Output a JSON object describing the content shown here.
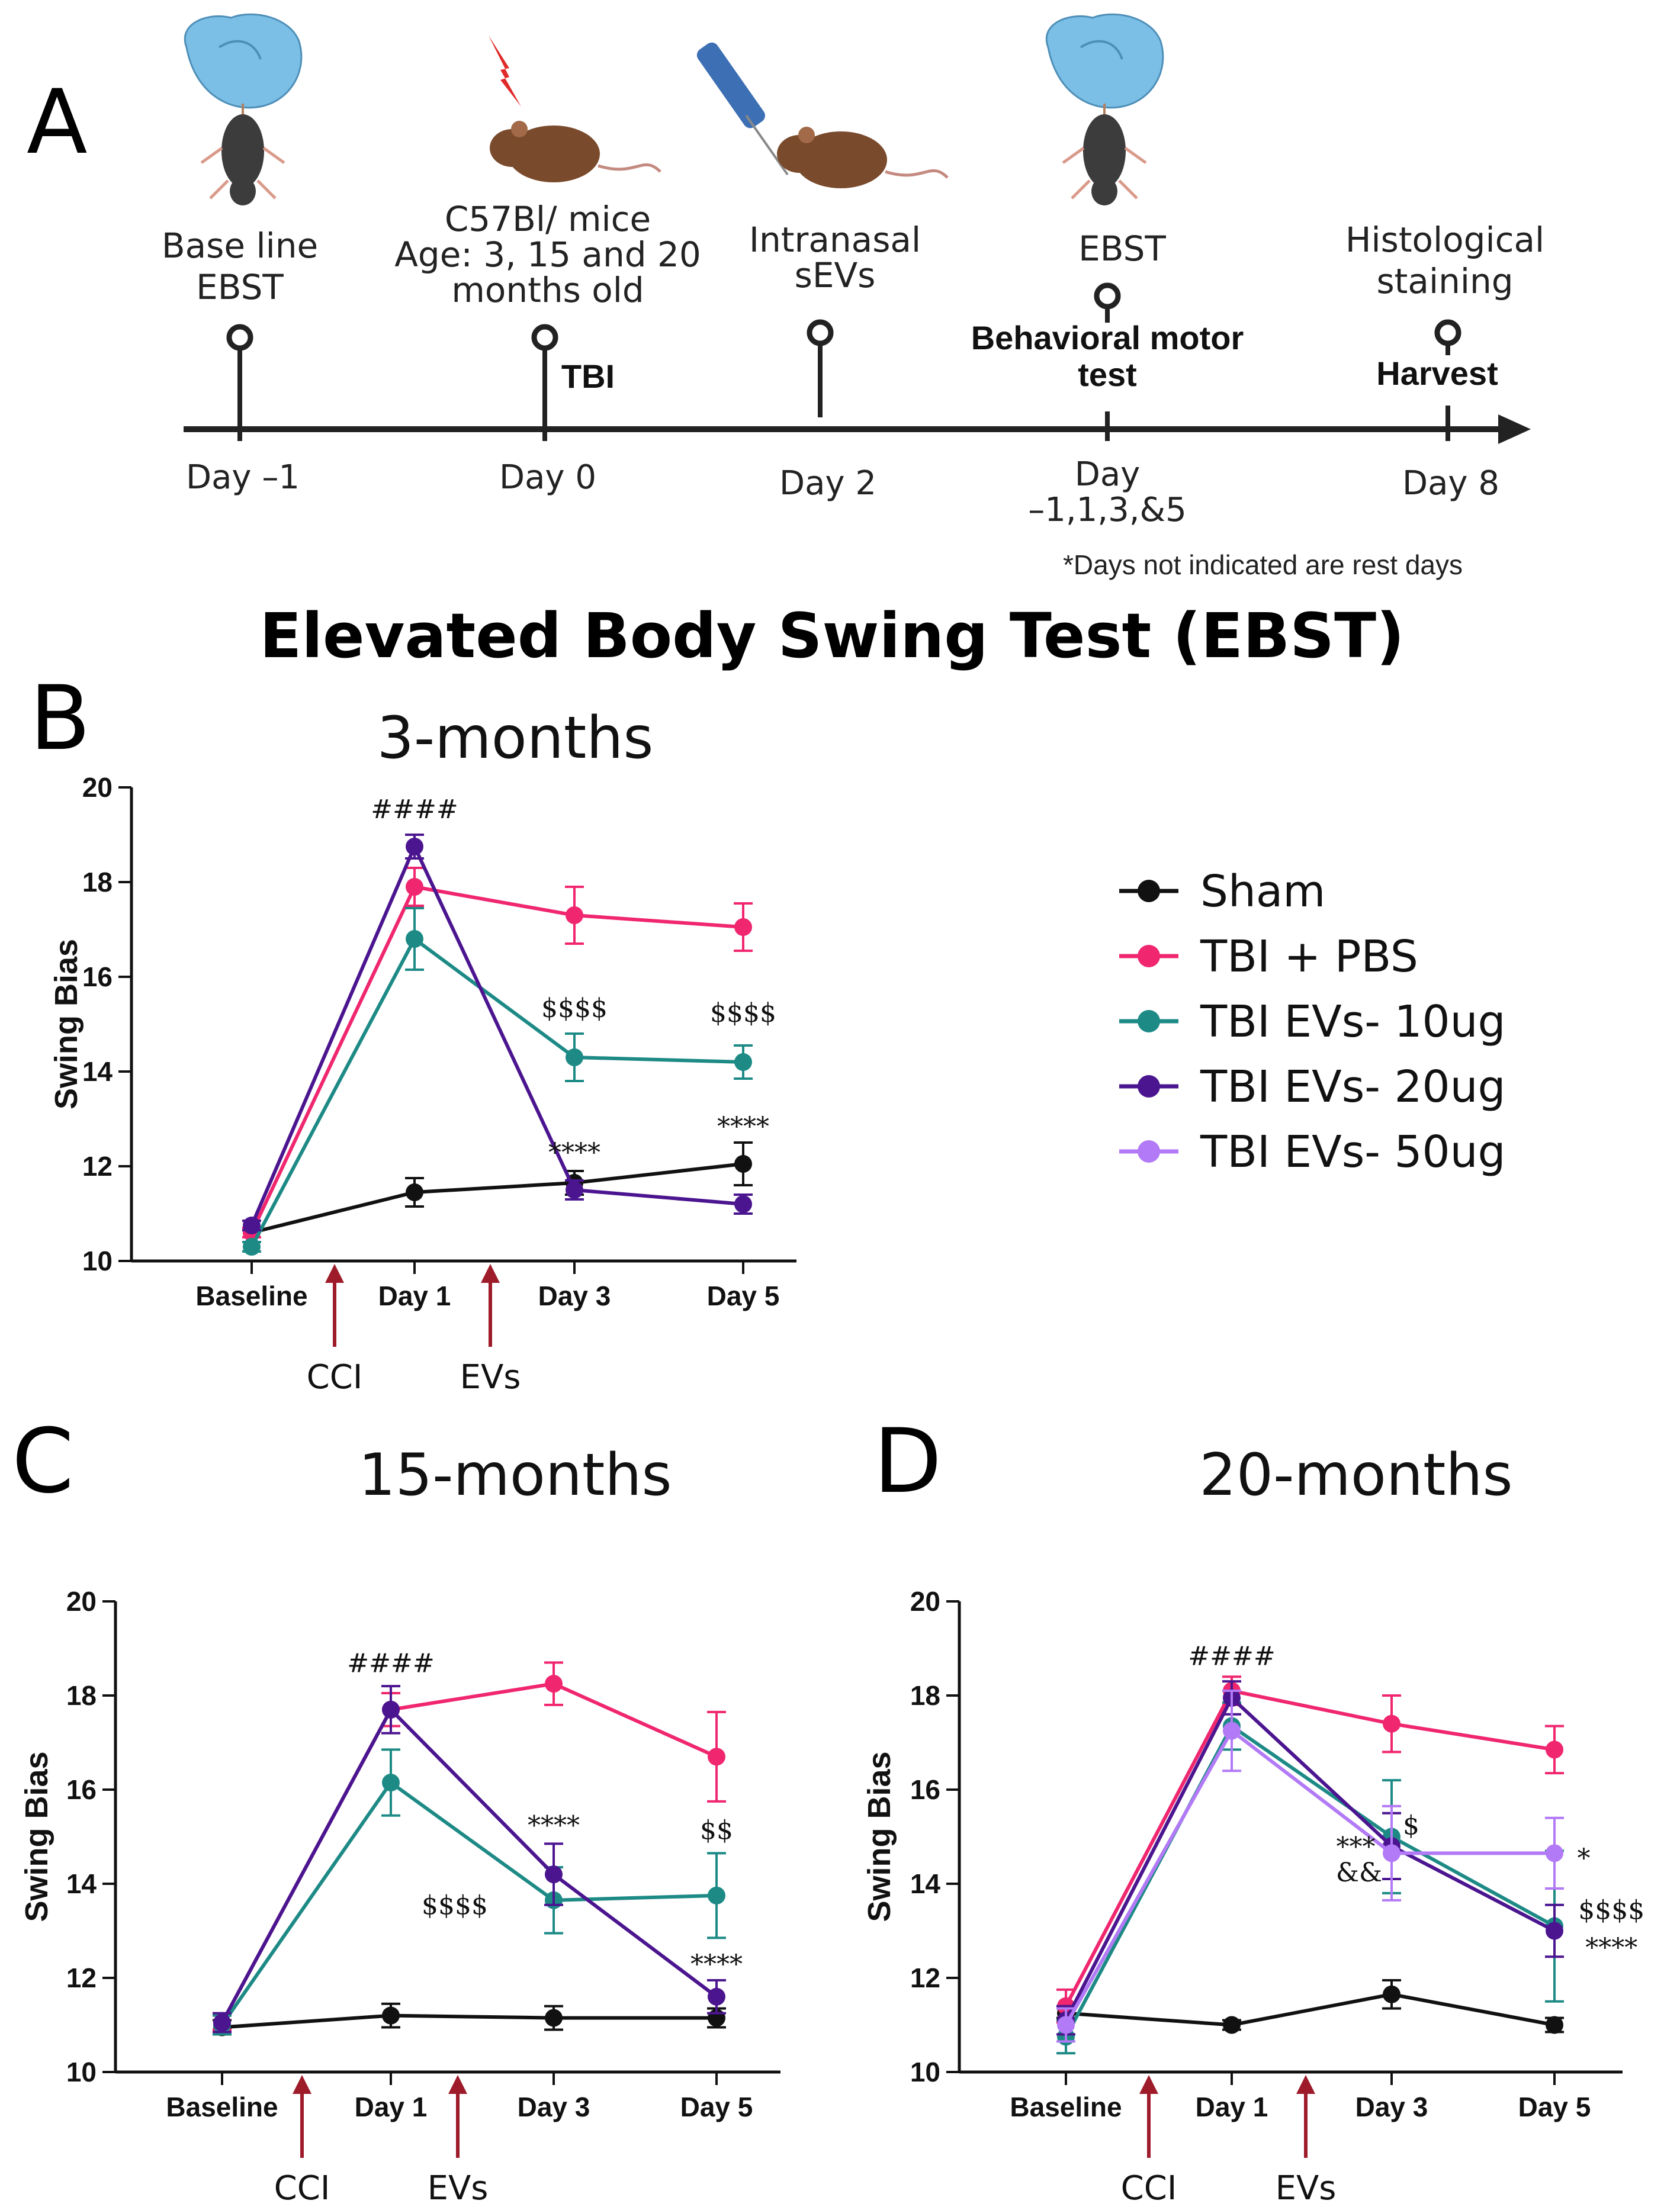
{
  "colors": {
    "sham": "#111111",
    "pbs": "#f0266f",
    "ev10": "#1d8a86",
    "ev20": "#4b1590",
    "ev50": "#b27af6",
    "arrow": "#9e1b2a",
    "glove": "#7cbfe6",
    "mouse_dark": "#3c3c3c",
    "mouse_brown": "#7a4a2c",
    "bolt": "#e02a2a"
  },
  "panel_a": {
    "letter": "A",
    "events": [
      {
        "id": "baseline",
        "top_lines": [
          "Base line",
          "EBST"
        ],
        "label": "",
        "day": [
          "Day –1"
        ]
      },
      {
        "id": "tbi",
        "top_lines": [
          "C57Bl/ mice",
          "Age: 3, 15 and 20",
          "months old"
        ],
        "label": "TBI",
        "day": [
          "Day 0"
        ]
      },
      {
        "id": "evs",
        "top_lines": [
          "Intranasal",
          "sEVs"
        ],
        "label": "",
        "day": [
          "Day 2"
        ]
      },
      {
        "id": "ebst",
        "top_lines": [
          "EBST"
        ],
        "label_lines": [
          "Behavioral motor",
          "test"
        ],
        "day": [
          "Day",
          "–1,1,3,&5"
        ]
      },
      {
        "id": "harvest",
        "top_lines": [
          "Histological",
          "staining"
        ],
        "label": "Harvest",
        "day": [
          "Day 8"
        ]
      }
    ],
    "note": "*Days not indicated are rest days",
    "icons": [
      "glove-hand-icon",
      "mouse-icon",
      "lightning-bolt-icon",
      "pipette-icon"
    ]
  },
  "main_title": "Elevated Body Swing Test (EBST)",
  "legend": [
    {
      "label": "Sham",
      "key": "sham"
    },
    {
      "label": "TBI + PBS",
      "key": "pbs"
    },
    {
      "label": "TBI EVs- 10ug",
      "key": "ev10"
    },
    {
      "label": "TBI EVs- 20ug",
      "key": "ev20"
    },
    {
      "label": "TBI EVs- 50ug",
      "key": "ev50"
    }
  ],
  "chart_data": [
    {
      "panel": "B",
      "title": "3-months",
      "type": "line",
      "categories": [
        "Baseline",
        "Day 1",
        "Day 3",
        "Day 5"
      ],
      "ylabel": "Swing Bias",
      "ylim": [
        10,
        20
      ],
      "yticks": [
        10,
        12,
        14,
        16,
        18,
        20
      ],
      "arrows": [
        "CCI",
        "EVs"
      ],
      "series": [
        {
          "name": "Sham",
          "key": "sham",
          "values": [
            10.6,
            11.45,
            11.65,
            12.05
          ],
          "err": [
            0.1,
            0.3,
            0.25,
            0.45
          ]
        },
        {
          "name": "TBI + PBS",
          "key": "pbs",
          "values": [
            10.6,
            17.9,
            17.3,
            17.05
          ],
          "err": [
            0.1,
            0.4,
            0.6,
            0.5
          ]
        },
        {
          "name": "TBI EVs- 10ug",
          "key": "ev10",
          "values": [
            10.3,
            16.8,
            14.3,
            14.2
          ],
          "err": [
            0.1,
            0.65,
            0.5,
            0.35
          ]
        },
        {
          "name": "TBI EVs- 20ug",
          "key": "ev20",
          "values": [
            10.75,
            18.75,
            11.5,
            11.2
          ],
          "err": [
            0.1,
            0.25,
            0.2,
            0.2
          ]
        }
      ],
      "annotations": [
        {
          "text": "####",
          "cat": 1,
          "y": 19.35
        },
        {
          "text": "$$$$",
          "cat": 2,
          "y": 15.15
        },
        {
          "text": "$$$$",
          "cat": 3,
          "y": 15.05
        },
        {
          "text": "****",
          "cat": 2,
          "y": 12.1
        },
        {
          "text": "****",
          "cat": 3,
          "y": 12.65
        }
      ]
    },
    {
      "panel": "C",
      "title": "15-months",
      "type": "line",
      "categories": [
        "Baseline",
        "Day 1",
        "Day 3",
        "Day 5"
      ],
      "ylabel": "Swing Bias",
      "ylim": [
        10,
        20
      ],
      "yticks": [
        10,
        12,
        14,
        16,
        18,
        20
      ],
      "arrows": [
        "CCI",
        "EVs"
      ],
      "series": [
        {
          "name": "Sham",
          "key": "sham",
          "values": [
            10.95,
            11.2,
            11.15,
            11.15
          ],
          "err": [
            0.15,
            0.25,
            0.25,
            0.2
          ]
        },
        {
          "name": "TBI + PBS",
          "key": "pbs",
          "values": [
            11.05,
            17.7,
            18.25,
            16.7
          ],
          "err": [
            0.15,
            0.35,
            0.45,
            0.95
          ]
        },
        {
          "name": "TBI EVs- 10ug",
          "key": "ev10",
          "values": [
            11.0,
            16.15,
            13.65,
            13.75
          ],
          "err": [
            0.2,
            0.7,
            0.7,
            0.9
          ]
        },
        {
          "name": "TBI EVs- 20ug",
          "key": "ev20",
          "values": [
            11.05,
            17.7,
            14.2,
            11.6
          ],
          "err": [
            0.2,
            0.5,
            0.65,
            0.35
          ]
        }
      ],
      "annotations": [
        {
          "text": "####",
          "cat": 1,
          "y": 18.5
        },
        {
          "text": "****",
          "cat": 2,
          "y": 15.05
        },
        {
          "text": "$$$$",
          "cat": 2,
          "y": 13.35,
          "dx": -0.6
        },
        {
          "text": "$$",
          "cat": 3,
          "y": 14.95
        },
        {
          "text": "****",
          "cat": 3,
          "y": 12.1
        }
      ]
    },
    {
      "panel": "D",
      "title": "20-months",
      "type": "line",
      "categories": [
        "Baseline",
        "Day 1",
        "Day 3",
        "Day 5"
      ],
      "ylabel": "Swing Bias",
      "ylim": [
        10,
        20
      ],
      "yticks": [
        10,
        12,
        14,
        16,
        18,
        20
      ],
      "arrows": [
        "CCI",
        "EVs"
      ],
      "series": [
        {
          "name": "Sham",
          "key": "sham",
          "values": [
            11.25,
            11.0,
            11.65,
            11.0
          ],
          "err": [
            0.1,
            0.1,
            0.3,
            0.15
          ]
        },
        {
          "name": "TBI + PBS",
          "key": "pbs",
          "values": [
            11.4,
            18.1,
            17.4,
            16.85
          ],
          "err": [
            0.35,
            0.3,
            0.6,
            0.5
          ]
        },
        {
          "name": "TBI EVs- 10ug",
          "key": "ev10",
          "values": [
            10.75,
            17.35,
            15.0,
            13.1
          ],
          "err": [
            0.35,
            0.5,
            1.2,
            1.6
          ]
        },
        {
          "name": "TBI EVs- 20ug",
          "key": "ev20",
          "values": [
            11.1,
            17.95,
            14.8,
            13.0
          ],
          "err": [
            0.3,
            0.35,
            0.7,
            0.55
          ]
        },
        {
          "name": "TBI EVs- 50ug",
          "key": "ev50",
          "values": [
            11.0,
            17.25,
            14.65,
            14.65
          ],
          "err": [
            0.35,
            0.85,
            1.0,
            0.75
          ]
        }
      ],
      "annotations": [
        {
          "text": "####",
          "cat": 1,
          "y": 18.65
        },
        {
          "text": "$",
          "cat": 2,
          "y": 15.05,
          "dx": 0.12
        },
        {
          "text": "***",
          "cat": 2,
          "y": 14.6,
          "dx": -0.22
        },
        {
          "text": "&&",
          "cat": 2,
          "y": 14.05,
          "dx": -0.2
        },
        {
          "text": "*",
          "cat": 3,
          "y": 14.35,
          "dx": 0.18
        },
        {
          "text": "$$$$",
          "cat": 3,
          "y": 13.25,
          "dx": 0.35
        },
        {
          "text": "****",
          "cat": 3,
          "y": 12.45,
          "dx": 0.35
        }
      ]
    }
  ]
}
